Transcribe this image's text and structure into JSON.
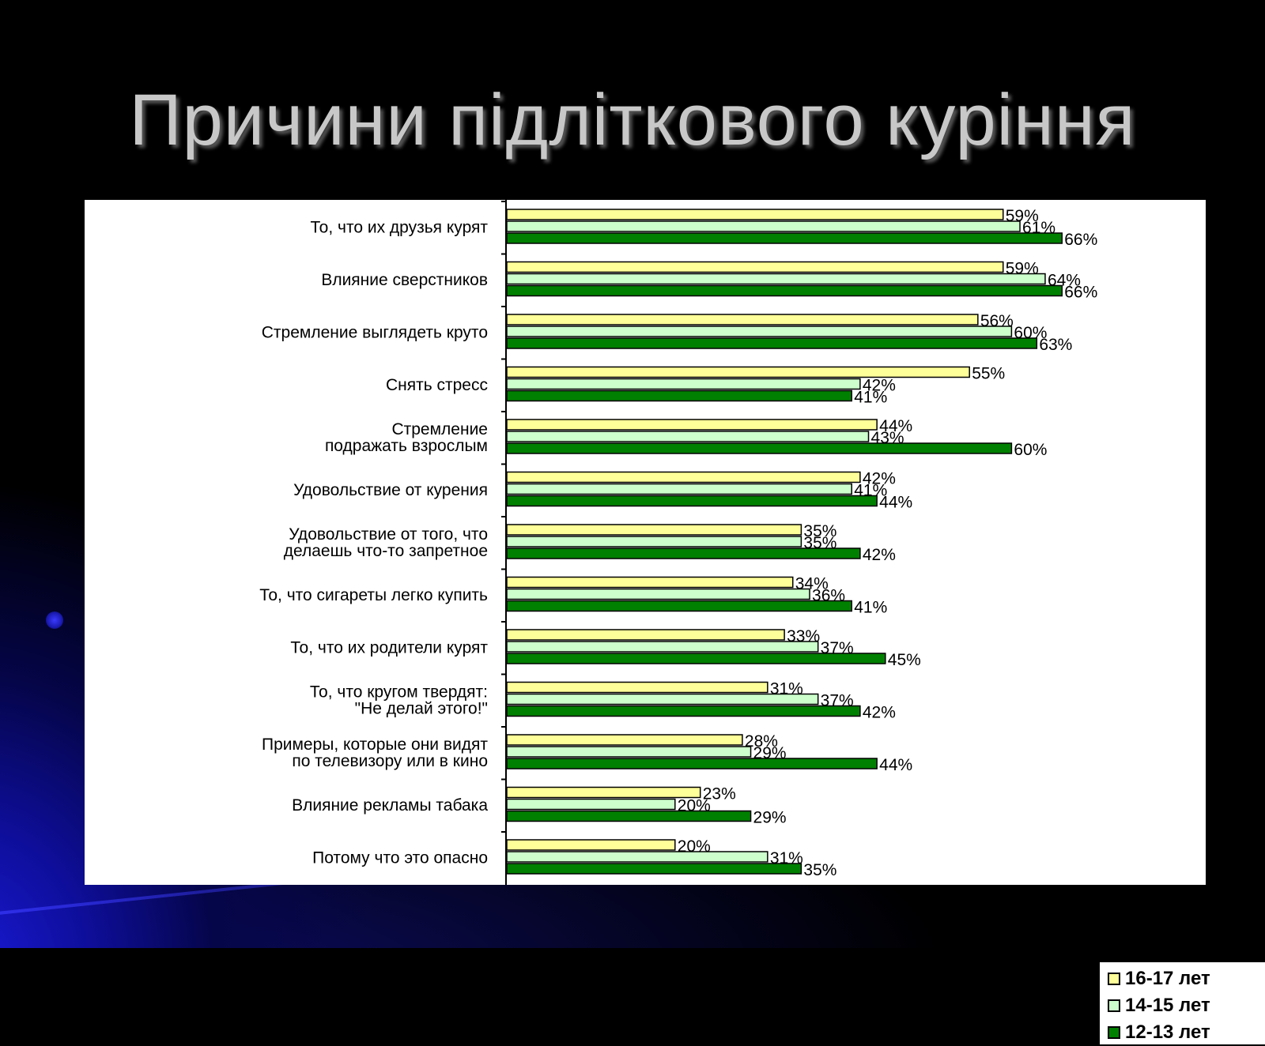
{
  "slide": {
    "title": "Причини підліткового куріння"
  },
  "chart_data": {
    "type": "bar",
    "orientation": "horizontal",
    "categories": [
      [
        "То, что их друзья курят"
      ],
      [
        "Влияние сверстников"
      ],
      [
        "Стремление выглядеть круто"
      ],
      [
        "Снять стресс"
      ],
      [
        "Стремление",
        "подражать взрослым"
      ],
      [
        "Удовольствие от курения"
      ],
      [
        "Удовольствие от того, что",
        "делаешь что-то запретное"
      ],
      [
        "То, что сигареты легко купить"
      ],
      [
        "То, что их родители курят"
      ],
      [
        "То, что кругом твердят:",
        "\"Не делай этого!\""
      ],
      [
        "Примеры, которые они видят",
        "по телевизору или в кино"
      ],
      [
        "Влияние рекламы табака"
      ],
      [
        "Потому что это опасно"
      ]
    ],
    "series": [
      {
        "name": "16-17 лет",
        "color": "#ffff99",
        "values": [
          59,
          59,
          56,
          55,
          44,
          42,
          35,
          34,
          33,
          31,
          28,
          23,
          20
        ]
      },
      {
        "name": "14-15 лет",
        "color": "#ccffcc",
        "values": [
          61,
          64,
          60,
          42,
          43,
          41,
          35,
          36,
          37,
          37,
          29,
          20,
          31
        ]
      },
      {
        "name": "12-13 лет",
        "color": "#008000",
        "values": [
          66,
          66,
          63,
          41,
          60,
          44,
          42,
          41,
          45,
          42,
          44,
          29,
          35
        ]
      }
    ],
    "value_suffix": "%",
    "legend_position": "bottom-right",
    "grid": false
  }
}
